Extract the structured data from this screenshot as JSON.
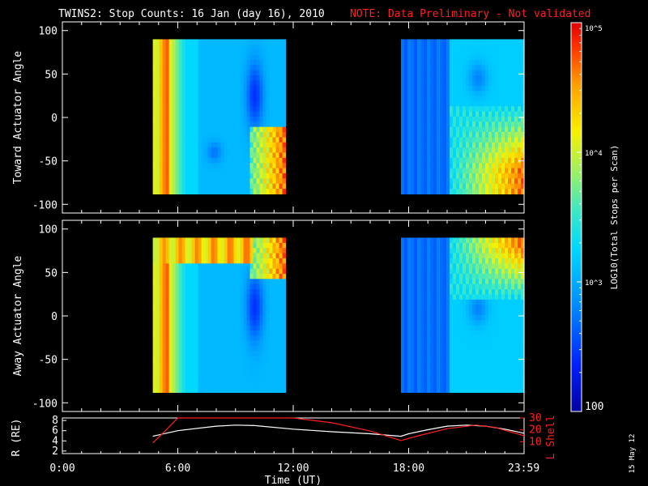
{
  "chart_data": {
    "type": "heatmap",
    "title": "TWINS2: Stop Counts: 16 Jan (day  16), 2010",
    "note": "NOTE: Data Preliminary - Not validated",
    "date_stamp": "15 May 12",
    "x_axis": {
      "label": "Time (UT)",
      "range_hours": [
        0,
        24
      ],
      "ticks": [
        {
          "value": 0,
          "label": "0:00"
        },
        {
          "value": 6,
          "label": "6:00"
        },
        {
          "value": 12,
          "label": "12:00"
        },
        {
          "value": 18,
          "label": "18:00"
        },
        {
          "value": 23.983,
          "label": "23:59"
        }
      ]
    },
    "colorbar": {
      "label": "LOG10(Total Stops per Scan)",
      "scale": "log",
      "range": [
        100,
        100000
      ],
      "ticks": [
        {
          "value": 100,
          "label": "100"
        },
        {
          "value": 1000,
          "label": "10^3"
        },
        {
          "value": 10000,
          "label": "10^4"
        },
        {
          "value": 100000,
          "label": "10^5"
        }
      ]
    },
    "panels": [
      {
        "ylabel": "Toward Actuator Angle",
        "yrange": [
          -110,
          110
        ],
        "yticks": [
          100,
          50,
          0,
          -50,
          -100
        ],
        "data_coverage_hours": [
          [
            4.7,
            11.6
          ],
          [
            17.6,
            24.0
          ]
        ],
        "angle_range": [
          -88,
          90
        ]
      },
      {
        "ylabel": "Away Actuator Angle",
        "yrange": [
          -110,
          110
        ],
        "yticks": [
          100,
          50,
          0,
          -50,
          -100
        ],
        "data_coverage_hours": [
          [
            4.7,
            11.6
          ],
          [
            17.6,
            24.0
          ]
        ],
        "angle_range": [
          -88,
          90
        ]
      }
    ],
    "orbit_panel": {
      "left_label": "R (RE)",
      "left_range": [
        1.5,
        8.5
      ],
      "left_ticks": [
        2,
        4,
        6,
        8
      ],
      "right_label": "L Shell",
      "right_range": [
        0,
        30
      ],
      "right_ticks": [
        10,
        20,
        30
      ],
      "series": [
        {
          "name": "R",
          "color": "#ffffff",
          "axis": "left",
          "x": [
            4.7,
            6,
            8,
            9,
            10,
            12,
            14,
            16,
            17.6,
            18,
            19,
            20,
            21,
            22,
            23,
            24
          ],
          "y": [
            4.9,
            6.0,
            6.9,
            7.1,
            7.0,
            6.3,
            5.8,
            5.4,
            4.9,
            5.4,
            6.2,
            6.9,
            7.1,
            6.9,
            6.3,
            5.5
          ]
        },
        {
          "name": "L",
          "color": "#ff2020",
          "axis": "right",
          "x": [
            4.7,
            5.4,
            6.0,
            12.0,
            14,
            16,
            17.6,
            18.5,
            20,
            21.5,
            22.5,
            24
          ],
          "y": [
            9,
            20,
            31,
            31,
            26,
            19,
            11,
            15,
            21,
            24,
            22,
            15
          ]
        }
      ]
    }
  }
}
